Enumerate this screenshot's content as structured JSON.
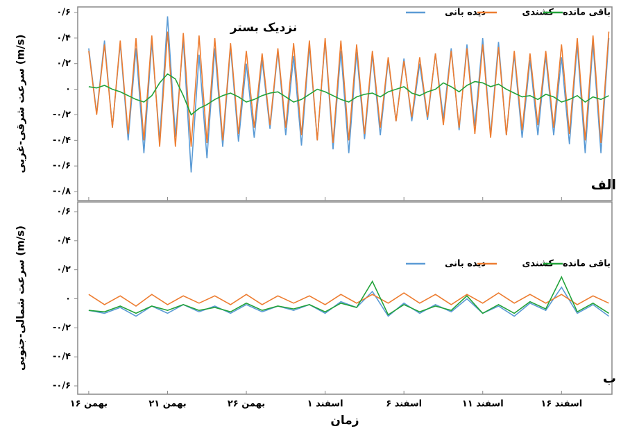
{
  "chart_data": [
    {
      "type": "line",
      "title": "نزدیک بستر",
      "panel_label": "الف",
      "y_label": "سرعت شرقی-غربی (m/s)",
      "xlim": [
        -0.7,
        33.2
      ],
      "ylim": [
        -0.8,
        0.6
      ],
      "yticks": [
        {
          "value": 0.6,
          "label": "۰/۶"
        },
        {
          "value": 0.4,
          "label": "۰/۴"
        },
        {
          "value": 0.2,
          "label": "۰/۲"
        },
        {
          "value": 0,
          "label": "۰"
        },
        {
          "value": -0.2,
          "label": "-۰/۲"
        },
        {
          "value": -0.4,
          "label": "-۰/۴"
        },
        {
          "value": -0.6,
          "label": "-۰/۶"
        },
        {
          "value": -0.8,
          "label": "-۰/۸"
        }
      ],
      "x": [
        0,
        0.5,
        1,
        1.5,
        2,
        2.5,
        3,
        3.5,
        4,
        4.5,
        5,
        5.5,
        6,
        6.5,
        7,
        7.5,
        8,
        8.5,
        9,
        9.5,
        10,
        10.5,
        11,
        11.5,
        12,
        12.5,
        13,
        13.5,
        14,
        14.5,
        15,
        15.5,
        16,
        16.5,
        17,
        17.5,
        18,
        18.5,
        19,
        19.5,
        20,
        20.5,
        21,
        21.5,
        22,
        22.5,
        23,
        23.5,
        24,
        24.5,
        25,
        25.5,
        26,
        26.5,
        27,
        27.5,
        28,
        28.5,
        29,
        29.5,
        30,
        30.5,
        31,
        31.5,
        32,
        32.5,
        33
      ],
      "series": [
        {
          "name": "دیده بانی",
          "color": "#5b9bd5",
          "values": [
            0.32,
            -0.19,
            0.38,
            -0.3,
            0.36,
            -0.4,
            0.32,
            -0.5,
            0.37,
            -0.4,
            0.57,
            -0.37,
            0.39,
            -0.65,
            0.27,
            -0.54,
            0.32,
            -0.45,
            0.33,
            -0.41,
            0.2,
            -0.38,
            0.23,
            -0.31,
            0.3,
            -0.36,
            0.26,
            -0.44,
            0.34,
            -0.4,
            0.38,
            -0.47,
            0.3,
            -0.5,
            0.29,
            -0.39,
            0.27,
            -0.36,
            0.23,
            -0.25,
            0.24,
            -0.25,
            0.2,
            -0.24,
            0.28,
            -0.23,
            0.32,
            -0.32,
            0.35,
            -0.29,
            0.4,
            -0.36,
            0.37,
            -0.36,
            0.27,
            -0.38,
            0.23,
            -0.36,
            0.26,
            -0.36,
            0.25,
            -0.43,
            0.35,
            -0.5,
            0.36,
            -0.5,
            0.4
          ]
        },
        {
          "name": "کشندی",
          "color": "#ed7d31",
          "values": [
            0.3,
            -0.2,
            0.35,
            -0.3,
            0.38,
            -0.35,
            0.4,
            -0.4,
            0.42,
            -0.45,
            0.45,
            -0.45,
            0.44,
            -0.45,
            0.42,
            -0.42,
            0.4,
            -0.4,
            0.36,
            -0.35,
            0.3,
            -0.3,
            0.28,
            -0.28,
            0.32,
            -0.3,
            0.36,
            -0.36,
            0.38,
            -0.4,
            0.4,
            -0.42,
            0.38,
            -0.4,
            0.35,
            -0.35,
            0.3,
            -0.3,
            0.25,
            -0.25,
            0.22,
            -0.22,
            0.25,
            -0.22,
            0.28,
            -0.28,
            0.3,
            -0.3,
            0.32,
            -0.35,
            0.35,
            -0.38,
            0.33,
            -0.36,
            0.3,
            -0.32,
            0.28,
            -0.28,
            0.3,
            -0.3,
            0.35,
            -0.35,
            0.4,
            -0.4,
            0.42,
            -0.42,
            0.45
          ]
        },
        {
          "name": "باقی مانده",
          "color": "#22a33a",
          "values": [
            0.02,
            0.01,
            0.03,
            0,
            -0.02,
            -0.05,
            -0.08,
            -0.1,
            -0.05,
            0.05,
            0.12,
            0.08,
            -0.05,
            -0.2,
            -0.15,
            -0.12,
            -0.08,
            -0.05,
            -0.03,
            -0.06,
            -0.1,
            -0.08,
            -0.05,
            -0.03,
            -0.02,
            -0.06,
            -0.1,
            -0.08,
            -0.04,
            0,
            -0.02,
            -0.05,
            -0.08,
            -0.1,
            -0.06,
            -0.04,
            -0.03,
            -0.06,
            -0.02,
            0,
            0.02,
            -0.03,
            -0.05,
            -0.02,
            0,
            0.05,
            0.02,
            -0.02,
            0.03,
            0.06,
            0.05,
            0.02,
            0.04,
            0,
            -0.03,
            -0.06,
            -0.05,
            -0.08,
            -0.04,
            -0.06,
            -0.1,
            -0.08,
            -0.05,
            -0.1,
            -0.06,
            -0.08,
            -0.05
          ]
        }
      ]
    },
    {
      "type": "line",
      "panel_label": "ب",
      "y_label": "سرعت شمالی-جنوبی (m/s)",
      "x_label": "زمان",
      "xlim": [
        -0.7,
        33.2
      ],
      "ylim": [
        -0.6,
        0.6
      ],
      "yticks": [
        {
          "value": 0.6,
          "label": "۰/۶"
        },
        {
          "value": 0.4,
          "label": "۰/۴"
        },
        {
          "value": 0.2,
          "label": "۰/۲"
        },
        {
          "value": 0,
          "label": "۰"
        },
        {
          "value": -0.2,
          "label": "-۰/۲"
        },
        {
          "value": -0.4,
          "label": "-۰/۴"
        },
        {
          "value": -0.6,
          "label": "-۰/۶"
        }
      ],
      "xticks": [
        {
          "value": 0,
          "label": "۱۶ بهمن"
        },
        {
          "value": 5,
          "label": "۲۱ بهمن"
        },
        {
          "value": 10,
          "label": "۲۶ بهمن"
        },
        {
          "value": 15,
          "label": "۱ اسفند"
        },
        {
          "value": 20,
          "label": "۶ اسفند"
        },
        {
          "value": 25,
          "label": "۱۱ اسفند"
        },
        {
          "value": 30,
          "label": "۱۶ اسفند"
        }
      ],
      "x": [
        0,
        1,
        2,
        3,
        4,
        5,
        6,
        7,
        8,
        9,
        10,
        11,
        12,
        13,
        14,
        15,
        16,
        17,
        18,
        19,
        20,
        21,
        22,
        23,
        24,
        25,
        26,
        27,
        28,
        29,
        30,
        31,
        32,
        33
      ],
      "series": [
        {
          "name": "دیده بانی",
          "color": "#5b9bd5",
          "values": [
            -0.08,
            -0.1,
            -0.06,
            -0.12,
            -0.05,
            -0.1,
            -0.04,
            -0.09,
            -0.05,
            -0.1,
            -0.04,
            -0.09,
            -0.05,
            -0.08,
            -0.04,
            -0.1,
            -0.02,
            -0.06,
            0.05,
            -0.12,
            -0.03,
            -0.1,
            -0.04,
            -0.09,
            0.0,
            -0.1,
            -0.05,
            -0.12,
            -0.03,
            -0.08,
            0.08,
            -0.1,
            -0.04,
            -0.12
          ]
        },
        {
          "name": "کشندی",
          "color": "#ed7d31",
          "values": [
            0.03,
            -0.04,
            0.02,
            -0.05,
            0.03,
            -0.04,
            0.02,
            -0.03,
            0.02,
            -0.04,
            0.03,
            -0.04,
            0.02,
            -0.03,
            0.02,
            -0.04,
            0.03,
            -0.03,
            0.03,
            -0.03,
            0.04,
            -0.03,
            0.03,
            -0.04,
            0.03,
            -0.03,
            0.04,
            -0.03,
            0.03,
            -0.03,
            0.03,
            -0.04,
            0.02,
            -0.03
          ]
        },
        {
          "name": "باقی مانده",
          "color": "#22a33a",
          "values": [
            -0.08,
            -0.09,
            -0.05,
            -0.1,
            -0.05,
            -0.08,
            -0.04,
            -0.08,
            -0.06,
            -0.09,
            -0.03,
            -0.08,
            -0.05,
            -0.07,
            -0.04,
            -0.09,
            -0.03,
            -0.06,
            0.12,
            -0.11,
            -0.04,
            -0.09,
            -0.05,
            -0.08,
            0.02,
            -0.1,
            -0.04,
            -0.1,
            -0.02,
            -0.07,
            0.15,
            -0.09,
            -0.03,
            -0.1
          ]
        }
      ]
    }
  ]
}
